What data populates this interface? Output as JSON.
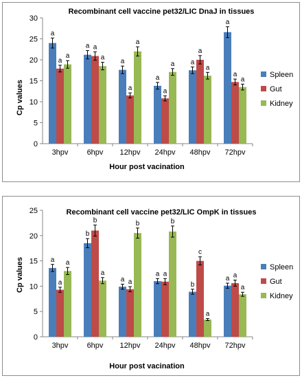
{
  "chart_data": [
    {
      "type": "bar",
      "title": "Recombinant cell vaccine pet32/LIC DnaJ in tissues",
      "xlabel": "Hour post vacination",
      "ylabel": "Cp values",
      "ylim": [
        0,
        30
      ],
      "yticks": [
        0,
        5,
        10,
        15,
        20,
        25,
        30
      ],
      "legend_position": "right",
      "grid": false,
      "categories": [
        "3hpv",
        "6hpv",
        "12hpv",
        "24hpv",
        "48hpv",
        "72hpv"
      ],
      "series": [
        {
          "name": "Spleen",
          "color": "#4a7ebb",
          "values": [
            24.0,
            21.2,
            17.6,
            13.8,
            17.5,
            26.6
          ],
          "errors": [
            1.2,
            1.0,
            0.9,
            0.8,
            0.8,
            1.3
          ],
          "labels": [
            "a",
            "a",
            "a",
            "a",
            "a",
            "a"
          ]
        },
        {
          "name": "Gut",
          "color": "#be4b48",
          "values": [
            17.9,
            20.9,
            11.5,
            10.8,
            20.0,
            14.7
          ],
          "errors": [
            0.8,
            1.0,
            0.6,
            0.6,
            1.0,
            0.7
          ],
          "labels": [
            "a",
            "a",
            "a",
            "a",
            "a",
            "a"
          ]
        },
        {
          "name": "Kidney",
          "color": "#98b954",
          "values": [
            18.9,
            18.5,
            22.0,
            17.1,
            16.2,
            13.5
          ],
          "errors": [
            0.9,
            0.9,
            1.1,
            0.8,
            0.8,
            0.7
          ],
          "labels": [
            "a",
            "a",
            "a",
            "a",
            "a",
            "a"
          ]
        }
      ]
    },
    {
      "type": "bar",
      "title": "Recombinant cell vaccine pet32/LIC OmpK in tissues",
      "xlabel": "Hour post vacination",
      "ylabel": "Cp values",
      "ylim": [
        0,
        25
      ],
      "yticks": [
        0,
        5,
        10,
        15,
        20,
        25
      ],
      "legend_position": "right",
      "grid": false,
      "categories": [
        "3hpv",
        "6hpv",
        "12hpv",
        "24hpv",
        "48hpv",
        "72hpv"
      ],
      "series": [
        {
          "name": "Spleen",
          "color": "#4a7ebb",
          "values": [
            13.6,
            18.5,
            9.9,
            11.0,
            8.9,
            10.1
          ],
          "errors": [
            0.7,
            0.9,
            0.5,
            0.5,
            0.5,
            0.5
          ],
          "labels": [
            "a",
            "b",
            "a",
            "a",
            "b",
            "a"
          ]
        },
        {
          "name": "Gut",
          "color": "#be4b48",
          "values": [
            9.3,
            21.0,
            9.4,
            10.9,
            15.0,
            10.6
          ],
          "errors": [
            0.5,
            1.1,
            0.5,
            0.6,
            0.8,
            0.6
          ],
          "labels": [
            "a",
            "b",
            "a",
            "a",
            "c",
            "a"
          ]
        },
        {
          "name": "Kidney",
          "color": "#98b954",
          "values": [
            13.0,
            11.1,
            20.5,
            20.8,
            3.4,
            8.4
          ],
          "errors": [
            0.7,
            0.6,
            1.0,
            1.1,
            0.2,
            0.4
          ],
          "labels": [
            "a",
            "a",
            "b",
            "b",
            "a",
            "a"
          ]
        }
      ]
    }
  ]
}
